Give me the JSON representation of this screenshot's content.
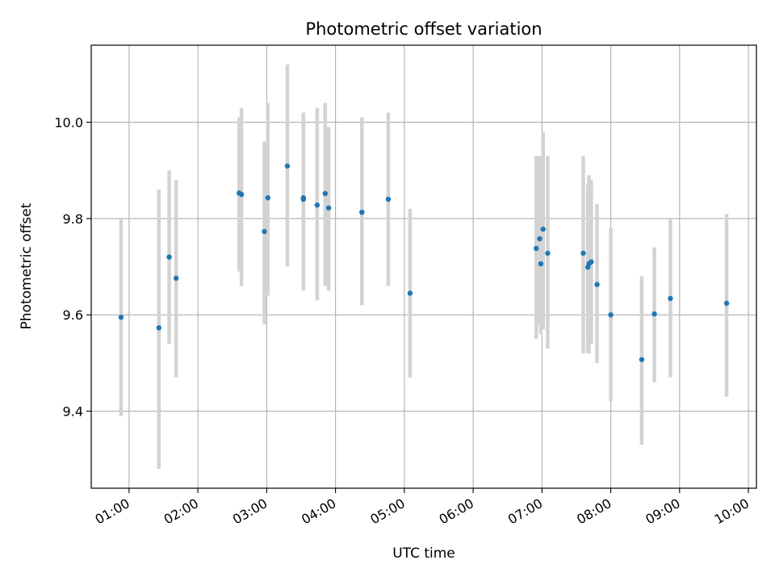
{
  "chart_data": {
    "type": "scatter",
    "title": "Photometric offset variation",
    "xlabel": "UTC time",
    "ylabel": "Photometric offset",
    "x_unit": "UTC hh:mm",
    "xlim": [
      "00:27",
      "10:07"
    ],
    "ylim": [
      9.24,
      10.16
    ],
    "x_ticks": [
      "01:00",
      "02:00",
      "03:00",
      "04:00",
      "05:00",
      "06:00",
      "07:00",
      "08:00",
      "09:00",
      "10:00"
    ],
    "y_ticks": [
      9.4,
      9.6,
      9.8,
      10.0
    ],
    "y_tick_labels": [
      "9.4",
      "9.6",
      "9.8",
      "10.0"
    ],
    "grid": true,
    "colors": {
      "marker": "#1f77b4",
      "errorbar": "#d3d3d3",
      "grid": "#b0b0b0"
    },
    "series": [
      {
        "points": [
          {
            "x": "00:53",
            "y": 9.595,
            "lo": 9.39,
            "hi": 9.8
          },
          {
            "x": "01:26",
            "y": 9.573,
            "lo": 9.28,
            "hi": 9.86
          },
          {
            "x": "01:35",
            "y": 9.72,
            "lo": 9.54,
            "hi": 9.9
          },
          {
            "x": "01:41",
            "y": 9.676,
            "lo": 9.47,
            "hi": 9.88
          },
          {
            "x": "02:36",
            "y": 9.853,
            "lo": 9.69,
            "hi": 10.01
          },
          {
            "x": "02:38",
            "y": 9.85,
            "lo": 9.66,
            "hi": 10.03
          },
          {
            "x": "02:58",
            "y": 9.773,
            "lo": 9.58,
            "hi": 9.96
          },
          {
            "x": "03:01",
            "y": 9.843,
            "lo": 9.64,
            "hi": 10.04
          },
          {
            "x": "03:18",
            "y": 9.909,
            "lo": 9.7,
            "hi": 10.12
          },
          {
            "x": "03:32",
            "y": 9.843,
            "lo": 9.66,
            "hi": 10.02
          },
          {
            "x": "03:32",
            "y": 9.84,
            "lo": 9.65,
            "hi": 10.01
          },
          {
            "x": "03:44",
            "y": 9.828,
            "lo": 9.63,
            "hi": 10.03
          },
          {
            "x": "03:51",
            "y": 9.852,
            "lo": 9.66,
            "hi": 10.04
          },
          {
            "x": "03:54",
            "y": 9.822,
            "lo": 9.65,
            "hi": 9.99
          },
          {
            "x": "04:23",
            "y": 9.813,
            "lo": 9.62,
            "hi": 10.01
          },
          {
            "x": "04:46",
            "y": 9.84,
            "lo": 9.66,
            "hi": 10.02
          },
          {
            "x": "05:05",
            "y": 9.645,
            "lo": 9.47,
            "hi": 9.82
          },
          {
            "x": "06:55",
            "y": 9.738,
            "lo": 9.55,
            "hi": 9.93
          },
          {
            "x": "06:58",
            "y": 9.758,
            "lo": 9.58,
            "hi": 9.93
          },
          {
            "x": "06:59",
            "y": 9.706,
            "lo": 9.56,
            "hi": 9.93
          },
          {
            "x": "07:01",
            "y": 9.778,
            "lo": 9.57,
            "hi": 9.98
          },
          {
            "x": "07:05",
            "y": 9.728,
            "lo": 9.53,
            "hi": 9.93
          },
          {
            "x": "07:36",
            "y": 9.728,
            "lo": 9.52,
            "hi": 9.93
          },
          {
            "x": "07:40",
            "y": 9.699,
            "lo": 9.52,
            "hi": 9.87
          },
          {
            "x": "07:41",
            "y": 9.706,
            "lo": 9.52,
            "hi": 9.89
          },
          {
            "x": "07:43",
            "y": 9.71,
            "lo": 9.54,
            "hi": 9.88
          },
          {
            "x": "07:48",
            "y": 9.663,
            "lo": 9.5,
            "hi": 9.83
          },
          {
            "x": "08:00",
            "y": 9.6,
            "lo": 9.42,
            "hi": 9.78
          },
          {
            "x": "08:27",
            "y": 9.507,
            "lo": 9.33,
            "hi": 9.68
          },
          {
            "x": "08:38",
            "y": 9.602,
            "lo": 9.46,
            "hi": 9.74
          },
          {
            "x": "08:52",
            "y": 9.634,
            "lo": 9.47,
            "hi": 9.8
          },
          {
            "x": "09:41",
            "y": 9.624,
            "lo": 9.43,
            "hi": 9.81
          }
        ]
      }
    ]
  }
}
